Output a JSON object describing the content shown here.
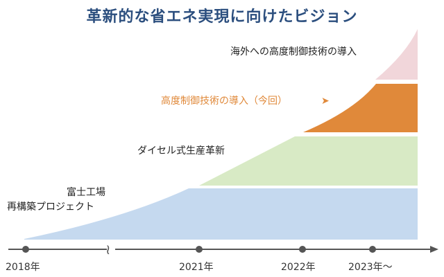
{
  "title": "革新的な省エネ実現に向けたビジョン",
  "colors": {
    "title": "#2b4e7e",
    "phase_factory": "#c5d9ef",
    "phase_diesel": "#d8eac5",
    "phase_advanced": "#e0893a",
    "phase_overseas": "#f1d6da",
    "axis": "#555555",
    "accent_text": "#e0893a"
  },
  "phases": {
    "factory": {
      "line1": "富士工場",
      "line2": "再構築プロジェクト"
    },
    "diesel": {
      "label": "ダイセル式生産革新"
    },
    "advanced": {
      "label": "高度制御技術の導入（今回）",
      "marker": "➤"
    },
    "overseas": {
      "label": "海外への高度制御技術の導入"
    }
  },
  "timeline": {
    "ticks": [
      "2018年",
      "2021年",
      "2022年",
      "2023年〜"
    ],
    "break_icon": "≀"
  }
}
